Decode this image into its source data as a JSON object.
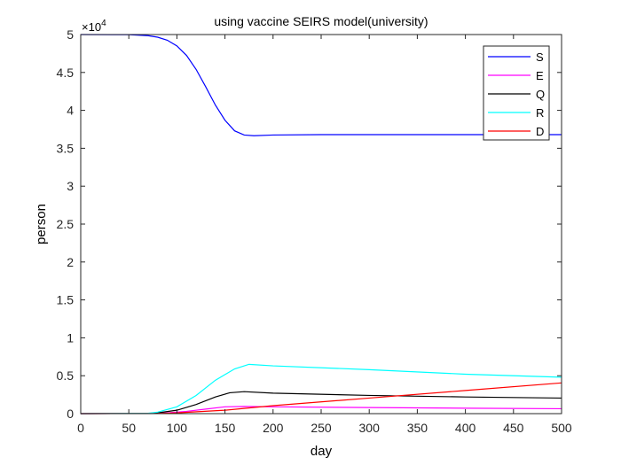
{
  "chart_data": {
    "type": "line",
    "title": "using vaccine SEIRS model(university)",
    "xlabel": "day",
    "ylabel": "person",
    "xlim": [
      0,
      500
    ],
    "ylim": [
      0,
      50000
    ],
    "y_exponent_label": "×10",
    "y_exponent_power": "4",
    "xticks": [
      "0",
      "50",
      "100",
      "150",
      "200",
      "250",
      "300",
      "350",
      "400",
      "450",
      "500"
    ],
    "yticks": [
      "0",
      "0.5",
      "1",
      "1.5",
      "2",
      "2.5",
      "3",
      "3.5",
      "4",
      "4.5",
      "5"
    ],
    "grid": false,
    "legend_position": "top-right",
    "series": [
      {
        "name": "S",
        "color": "#0000ff",
        "x": [
          0,
          50,
          70,
          80,
          90,
          100,
          110,
          120,
          130,
          140,
          150,
          160,
          170,
          180,
          200,
          250,
          300,
          400,
          500
        ],
        "y": [
          50000,
          49980,
          49850,
          49650,
          49250,
          48500,
          47250,
          45400,
          43100,
          40700,
          38700,
          37300,
          36750,
          36650,
          36750,
          36800,
          36800,
          36800,
          36800
        ]
      },
      {
        "name": "E",
        "color": "#ff00ff",
        "x": [
          0,
          70,
          90,
          110,
          130,
          150,
          170,
          200,
          300,
          400,
          500
        ],
        "y": [
          0,
          20,
          100,
          300,
          600,
          900,
          950,
          900,
          800,
          720,
          650
        ]
      },
      {
        "name": "Q",
        "color": "#000000",
        "x": [
          0,
          70,
          80,
          100,
          120,
          140,
          155,
          170,
          200,
          300,
          400,
          500
        ],
        "y": [
          0,
          30,
          100,
          450,
          1200,
          2200,
          2750,
          2900,
          2700,
          2400,
          2200,
          2050
        ]
      },
      {
        "name": "R",
        "color": "#00ffff",
        "x": [
          0,
          70,
          80,
          100,
          120,
          140,
          160,
          175,
          200,
          300,
          400,
          500
        ],
        "y": [
          0,
          50,
          200,
          900,
          2400,
          4400,
          5900,
          6500,
          6300,
          5800,
          5200,
          4800
        ]
      },
      {
        "name": "D",
        "color": "#ff0000",
        "x": [
          0,
          80,
          100,
          150,
          200,
          300,
          400,
          500
        ],
        "y": [
          0,
          20,
          100,
          450,
          1050,
          2050,
          3050,
          4050
        ]
      }
    ]
  }
}
